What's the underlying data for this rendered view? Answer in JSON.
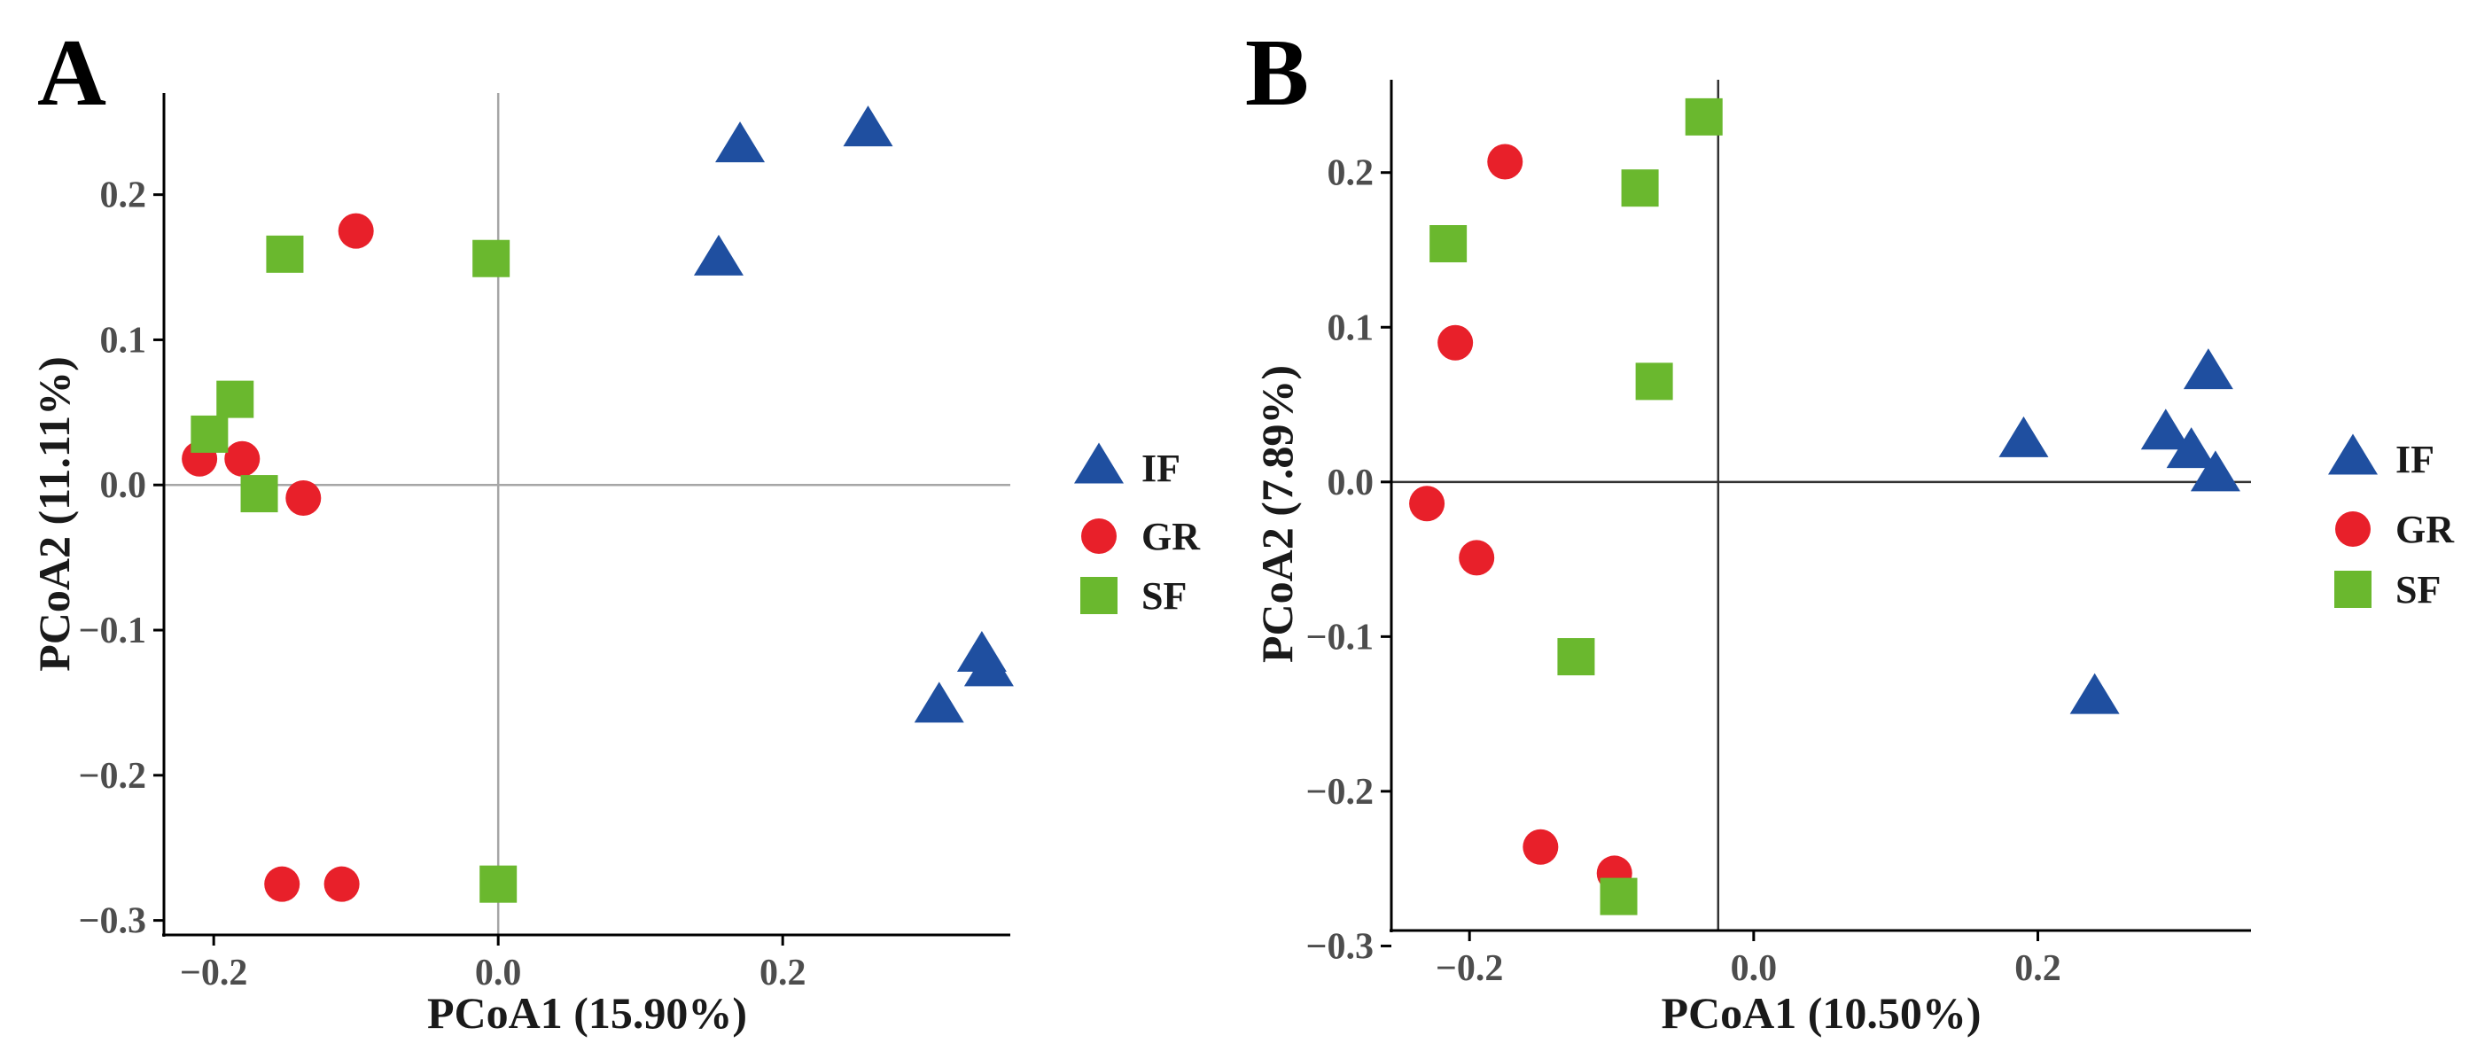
{
  "colors": {
    "IF": "#1f4fa0",
    "GR": "#e8202a",
    "SF": "#6ab82e"
  },
  "legend": [
    {
      "group": "IF",
      "label": "IF",
      "shape": "triangle-icon"
    },
    {
      "group": "GR",
      "label": "GR",
      "shape": "circle-icon"
    },
    {
      "group": "SF",
      "label": "SF",
      "shape": "square-icon"
    }
  ],
  "chart_data": [
    {
      "type": "scatter",
      "panel_label": "A",
      "xlabel": "PCoA1 (15.90%)",
      "ylabel": "PCoA2 (11.11%)",
      "xlim": [
        -0.235,
        0.36
      ],
      "ylim": [
        -0.31,
        0.27
      ],
      "xticks": [
        -0.2,
        0.0,
        0.2
      ],
      "xtick_labels": [
        "−0.2",
        "0.0",
        "0.2"
      ],
      "yticks": [
        0.2,
        0.1,
        0.0,
        -0.1,
        -0.2,
        -0.3
      ],
      "ytick_labels": [
        "0.2",
        "0.1",
        "0.0",
        "−0.1",
        "−0.2",
        "−0.3"
      ],
      "series": [
        {
          "name": "IF",
          "points": [
            [
              0.17,
              0.233
            ],
            [
              0.26,
              0.244
            ],
            [
              0.155,
              0.155
            ],
            [
              0.34,
              -0.118
            ],
            [
              0.345,
              -0.128
            ],
            [
              0.31,
              -0.153
            ]
          ]
        },
        {
          "name": "GR",
          "points": [
            [
              -0.1,
              0.175
            ],
            [
              -0.21,
              0.018
            ],
            [
              -0.18,
              0.018
            ],
            [
              -0.137,
              -0.009
            ],
            [
              -0.152,
              -0.275
            ],
            [
              -0.11,
              -0.275
            ]
          ]
        },
        {
          "name": "SF",
          "points": [
            [
              -0.15,
              0.159
            ],
            [
              -0.005,
              0.156
            ],
            [
              -0.185,
              0.059
            ],
            [
              -0.203,
              0.035
            ],
            [
              -0.168,
              -0.006
            ],
            [
              0.0,
              -0.275
            ]
          ]
        }
      ]
    },
    {
      "type": "scatter",
      "panel_label": "B",
      "xlabel": "PCoA1 (10.50%)",
      "ylabel": "PCoA2 (7.89%)",
      "xlim": [
        -0.255,
        0.35
      ],
      "ylim": [
        -0.29,
        0.26
      ],
      "xticks": [
        -0.2,
        0.0,
        0.2
      ],
      "xtick_labels": [
        "−0.2",
        "0.0",
        "0.2"
      ],
      "yticks": [
        0.2,
        0.1,
        0.0,
        -0.1,
        -0.2,
        -0.3
      ],
      "ytick_labels": [
        "0.2",
        "0.1",
        "0.0",
        "−0.1",
        "−0.2",
        "−0.3"
      ],
      "axis_line_x": -0.025,
      "series": [
        {
          "name": "IF",
          "points": [
            [
              0.19,
              0.026
            ],
            [
              0.29,
              0.031
            ],
            [
              0.32,
              0.07
            ],
            [
              0.308,
              0.019
            ],
            [
              0.325,
              0.004
            ],
            [
              0.24,
              -0.14
            ]
          ]
        },
        {
          "name": "GR",
          "points": [
            [
              -0.175,
              0.207
            ],
            [
              -0.21,
              0.09
            ],
            [
              -0.23,
              -0.014
            ],
            [
              -0.195,
              -0.049
            ],
            [
              -0.15,
              -0.236
            ],
            [
              -0.098,
              -0.253
            ]
          ]
        },
        {
          "name": "SF",
          "points": [
            [
              -0.215,
              0.154
            ],
            [
              -0.035,
              0.236
            ],
            [
              -0.08,
              0.19
            ],
            [
              -0.07,
              0.065
            ],
            [
              -0.125,
              -0.113
            ],
            [
              -0.095,
              -0.268
            ]
          ]
        }
      ]
    }
  ]
}
